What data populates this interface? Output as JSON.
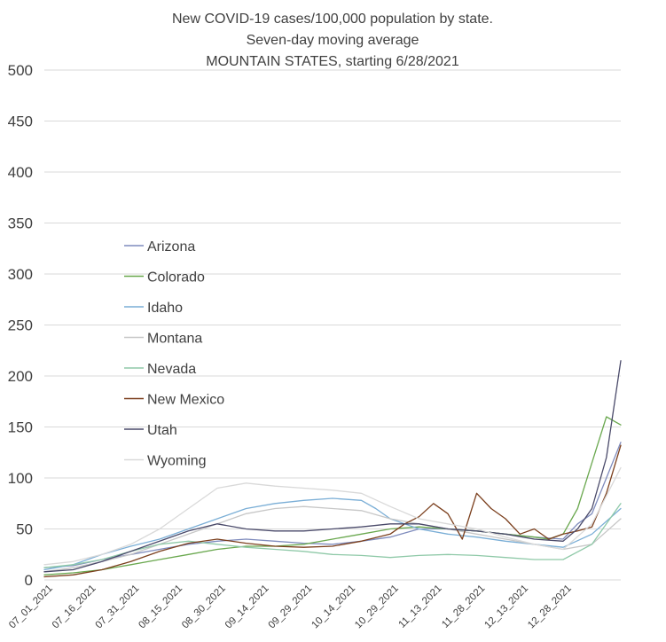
{
  "chart_data": {
    "type": "line",
    "title": [
      "New COVID-19 cases/100,000 population by state.",
      "Seven-day moving average",
      "MOUNTAIN STATES, starting 6/28/2021"
    ],
    "xlabel": "",
    "ylabel": "",
    "ylim": [
      0,
      500
    ],
    "yticks": [
      0,
      50,
      100,
      150,
      200,
      250,
      300,
      350,
      400,
      450,
      500
    ],
    "xticks": [
      "07_01_2021",
      "07_16_2021",
      "07_31_2021",
      "08_15_2021",
      "08_30_2021",
      "09_14_2021",
      "09_29_2021",
      "10_14_2021",
      "10_29_2021",
      "11_13_2021",
      "11_28_2021",
      "12_13_2021",
      "12_28_2021"
    ],
    "x_start": "06/28/2021",
    "x_end": "01/08/2022",
    "grid": true,
    "legend_position": "left",
    "series": [
      {
        "name": "Arizona",
        "color": "#7f8cbd",
        "points": [
          [
            0,
            12
          ],
          [
            10,
            14
          ],
          [
            20,
            20
          ],
          [
            30,
            25
          ],
          [
            40,
            30
          ],
          [
            50,
            35
          ],
          [
            60,
            38
          ],
          [
            70,
            40
          ],
          [
            80,
            38
          ],
          [
            90,
            36
          ],
          [
            100,
            35
          ],
          [
            110,
            38
          ],
          [
            120,
            42
          ],
          [
            130,
            50
          ],
          [
            140,
            50
          ],
          [
            150,
            48
          ],
          [
            160,
            45
          ],
          [
            170,
            42
          ],
          [
            180,
            40
          ],
          [
            185,
            55
          ],
          [
            190,
            65
          ],
          [
            195,
            100
          ],
          [
            200,
            135
          ]
        ]
      },
      {
        "name": "Colorado",
        "color": "#6aa84f",
        "points": [
          [
            0,
            5
          ],
          [
            10,
            7
          ],
          [
            20,
            10
          ],
          [
            30,
            15
          ],
          [
            40,
            20
          ],
          [
            50,
            25
          ],
          [
            60,
            30
          ],
          [
            70,
            33
          ],
          [
            80,
            33
          ],
          [
            90,
            35
          ],
          [
            100,
            40
          ],
          [
            110,
            45
          ],
          [
            120,
            50
          ],
          [
            130,
            52
          ],
          [
            140,
            50
          ],
          [
            150,
            48
          ],
          [
            160,
            45
          ],
          [
            170,
            42
          ],
          [
            175,
            40
          ],
          [
            180,
            45
          ],
          [
            185,
            70
          ],
          [
            190,
            115
          ],
          [
            195,
            160
          ],
          [
            200,
            152
          ]
        ]
      },
      {
        "name": "Idaho",
        "color": "#7aaed6",
        "points": [
          [
            0,
            10
          ],
          [
            10,
            15
          ],
          [
            20,
            25
          ],
          [
            30,
            33
          ],
          [
            40,
            40
          ],
          [
            50,
            50
          ],
          [
            60,
            60
          ],
          [
            70,
            70
          ],
          [
            80,
            75
          ],
          [
            90,
            78
          ],
          [
            100,
            80
          ],
          [
            110,
            78
          ],
          [
            115,
            70
          ],
          [
            120,
            60
          ],
          [
            125,
            55
          ],
          [
            130,
            50
          ],
          [
            140,
            45
          ],
          [
            150,
            42
          ],
          [
            160,
            38
          ],
          [
            170,
            35
          ],
          [
            180,
            32
          ],
          [
            190,
            45
          ],
          [
            200,
            70
          ]
        ]
      },
      {
        "name": "Montana",
        "color": "#c7c7c7",
        "points": [
          [
            0,
            8
          ],
          [
            10,
            12
          ],
          [
            20,
            18
          ],
          [
            30,
            25
          ],
          [
            40,
            35
          ],
          [
            50,
            45
          ],
          [
            60,
            55
          ],
          [
            70,
            65
          ],
          [
            80,
            70
          ],
          [
            90,
            72
          ],
          [
            100,
            70
          ],
          [
            110,
            68
          ],
          [
            120,
            60
          ],
          [
            130,
            55
          ],
          [
            140,
            50
          ],
          [
            150,
            45
          ],
          [
            160,
            40
          ],
          [
            170,
            35
          ],
          [
            180,
            30
          ],
          [
            190,
            35
          ],
          [
            200,
            60
          ]
        ]
      },
      {
        "name": "Nevada",
        "color": "#8fc9a8",
        "points": [
          [
            0,
            12
          ],
          [
            10,
            15
          ],
          [
            20,
            20
          ],
          [
            30,
            28
          ],
          [
            40,
            35
          ],
          [
            50,
            38
          ],
          [
            60,
            35
          ],
          [
            70,
            32
          ],
          [
            80,
            30
          ],
          [
            90,
            28
          ],
          [
            100,
            25
          ],
          [
            110,
            24
          ],
          [
            120,
            22
          ],
          [
            130,
            24
          ],
          [
            140,
            25
          ],
          [
            150,
            24
          ],
          [
            160,
            22
          ],
          [
            170,
            20
          ],
          [
            180,
            20
          ],
          [
            190,
            35
          ],
          [
            200,
            75
          ]
        ]
      },
      {
        "name": "New Mexico",
        "color": "#7b3f1d",
        "points": [
          [
            0,
            3
          ],
          [
            10,
            5
          ],
          [
            20,
            10
          ],
          [
            30,
            18
          ],
          [
            40,
            28
          ],
          [
            50,
            36
          ],
          [
            60,
            40
          ],
          [
            70,
            36
          ],
          [
            80,
            33
          ],
          [
            90,
            32
          ],
          [
            100,
            33
          ],
          [
            110,
            38
          ],
          [
            120,
            45
          ],
          [
            125,
            55
          ],
          [
            130,
            62
          ],
          [
            135,
            75
          ],
          [
            140,
            65
          ],
          [
            145,
            40
          ],
          [
            150,
            85
          ],
          [
            155,
            70
          ],
          [
            160,
            60
          ],
          [
            165,
            45
          ],
          [
            170,
            50
          ],
          [
            175,
            40
          ],
          [
            180,
            45
          ],
          [
            185,
            48
          ],
          [
            190,
            52
          ],
          [
            195,
            85
          ],
          [
            200,
            132
          ]
        ]
      },
      {
        "name": "Utah",
        "color": "#4a4a6a",
        "points": [
          [
            0,
            8
          ],
          [
            10,
            10
          ],
          [
            20,
            18
          ],
          [
            30,
            28
          ],
          [
            40,
            38
          ],
          [
            50,
            48
          ],
          [
            60,
            55
          ],
          [
            70,
            50
          ],
          [
            80,
            48
          ],
          [
            90,
            48
          ],
          [
            100,
            50
          ],
          [
            110,
            52
          ],
          [
            120,
            55
          ],
          [
            130,
            55
          ],
          [
            140,
            50
          ],
          [
            150,
            48
          ],
          [
            160,
            45
          ],
          [
            170,
            40
          ],
          [
            180,
            38
          ],
          [
            185,
            50
          ],
          [
            190,
            70
          ],
          [
            195,
            120
          ],
          [
            200,
            215
          ]
        ]
      },
      {
        "name": "Wyoming",
        "color": "#d9d9d9",
        "points": [
          [
            0,
            15
          ],
          [
            10,
            18
          ],
          [
            20,
            25
          ],
          [
            30,
            35
          ],
          [
            40,
            50
          ],
          [
            50,
            70
          ],
          [
            60,
            90
          ],
          [
            70,
            95
          ],
          [
            80,
            92
          ],
          [
            90,
            90
          ],
          [
            100,
            88
          ],
          [
            110,
            85
          ],
          [
            120,
            72
          ],
          [
            130,
            60
          ],
          [
            140,
            55
          ],
          [
            150,
            50
          ],
          [
            160,
            42
          ],
          [
            170,
            35
          ],
          [
            180,
            30
          ],
          [
            190,
            55
          ],
          [
            200,
            110
          ]
        ]
      }
    ]
  }
}
